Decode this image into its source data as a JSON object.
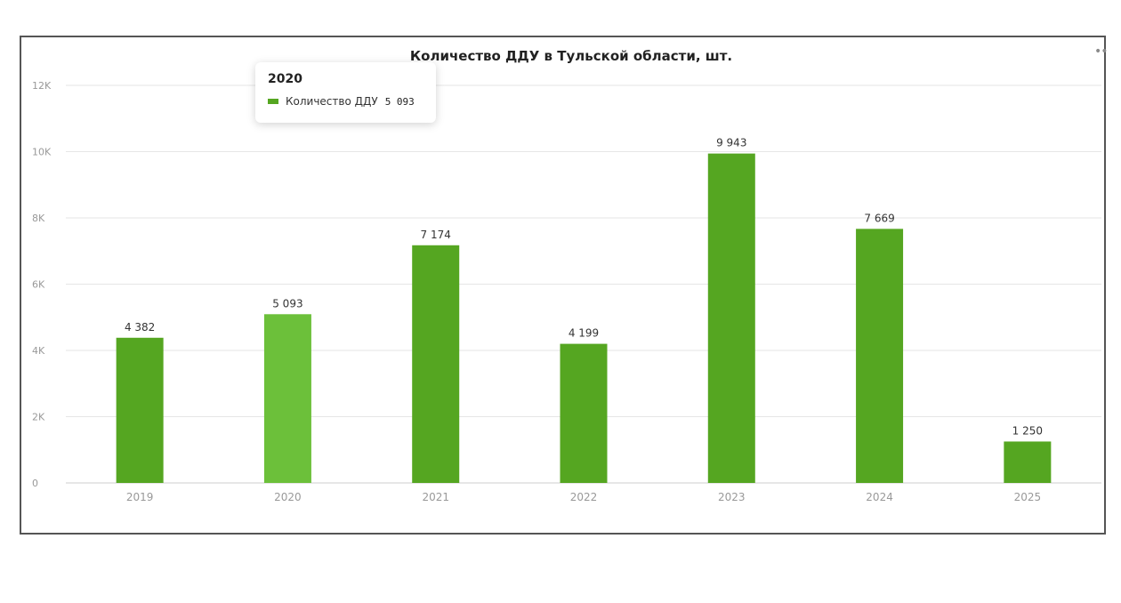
{
  "chart_data": {
    "type": "bar",
    "title": "Количество ДДУ в Тульской области, шт.",
    "categories": [
      "2019",
      "2020",
      "2021",
      "2022",
      "2023",
      "2024",
      "2025"
    ],
    "series": [
      {
        "name": "Количество ДДУ",
        "values": [
          4382,
          5093,
          7174,
          4199,
          9943,
          7669,
          1250
        ],
        "labels": [
          "4 382",
          "5 093",
          "7 174",
          "4 199",
          "9 943",
          "7 669",
          "1 250"
        ]
      }
    ],
    "ylim": [
      0,
      12000
    ],
    "yticks": [
      0,
      2000,
      4000,
      6000,
      8000,
      10000,
      12000
    ],
    "ytick_labels": [
      "0",
      "2K",
      "4K",
      "6K",
      "8K",
      "10K",
      "12K"
    ],
    "grid": true,
    "highlighted_index": 1,
    "colors": {
      "bar": "#55a621",
      "bar_highlight": "#6cc03a",
      "grid": "#e6e6e6",
      "axis": "#cccccc"
    }
  },
  "tooltip": {
    "title": "2020",
    "series_name": "Количество ДДУ",
    "value": "5 093",
    "swatch_color": "#55a621"
  },
  "toolbar": {
    "menu_icon": "more-icon"
  }
}
